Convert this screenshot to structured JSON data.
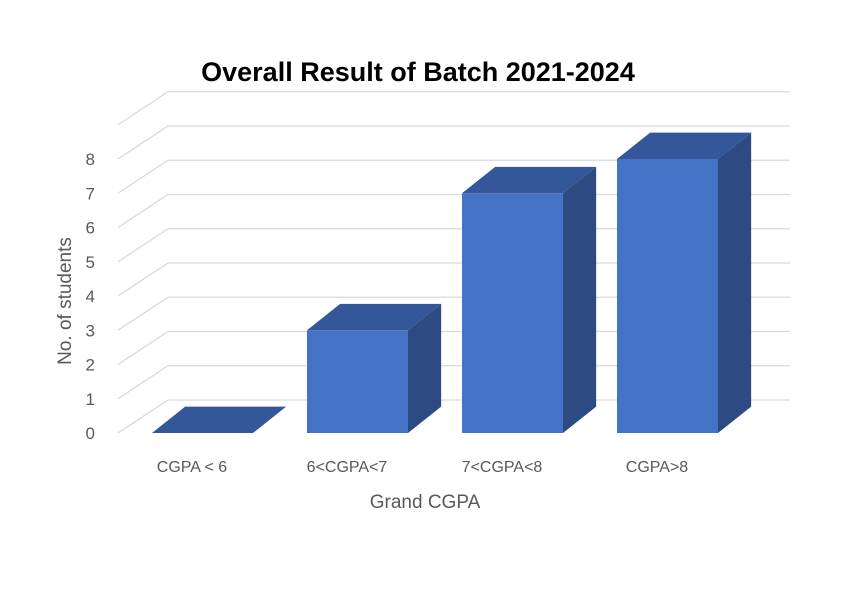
{
  "chart_data": {
    "type": "bar",
    "title": "Overall Result of Batch 2021-2024",
    "xlabel": "Grand CGPA",
    "ylabel": "No. of students",
    "categories": [
      "CGPA < 6",
      "6<CGPA<7",
      "7<CGPA<8",
      "CGPA>8"
    ],
    "values": [
      0,
      3,
      7,
      8
    ],
    "ylim": [
      0,
      9
    ],
    "yticks": [
      "0",
      "1",
      "2",
      "3",
      "4",
      "5",
      "6",
      "7",
      "8"
    ],
    "grid": true,
    "style": "3d-column",
    "colors": {
      "bar_front": "#4472c4",
      "bar_top": "#34579a",
      "bar_side": "#2e4a82",
      "grid": "#d9d9d9",
      "label": "#595959",
      "title": "#000000"
    }
  }
}
